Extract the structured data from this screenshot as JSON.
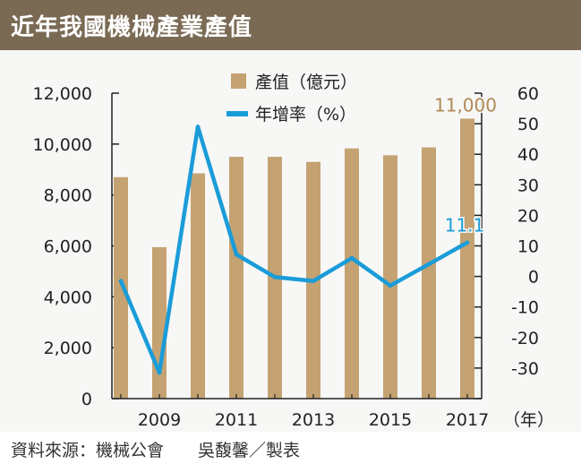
{
  "header": {
    "title": "近年我國機械產業產值"
  },
  "footer": {
    "source": "資料來源：機械公會　　吳馥馨／製表"
  },
  "colors": {
    "bar": "#c4a272",
    "line": "#1a9cd8",
    "header_bg": "#7a6a54",
    "label_bar": "#b08a55"
  },
  "chart_data": {
    "type": "bar",
    "x": [
      2008,
      2009,
      2010,
      2011,
      2012,
      2013,
      2014,
      2015,
      2016,
      2017
    ],
    "x_tick_labels": [
      "2009",
      "2011",
      "2013",
      "2015",
      "2017"
    ],
    "x_unit": "（年）",
    "series": [
      {
        "name": "產值（億元）",
        "type": "bar",
        "axis": "left",
        "values": [
          8700,
          5950,
          8850,
          9500,
          9500,
          9300,
          9830,
          9560,
          9870,
          11000
        ]
      },
      {
        "name": "年增率（%）",
        "type": "line",
        "axis": "right",
        "values": [
          -1.5,
          -31.5,
          49.0,
          7.2,
          -0.2,
          -1.5,
          6.0,
          -3.0,
          4.0,
          11.1
        ]
      }
    ],
    "annotations": [
      {
        "series": "產值（億元）",
        "x": 2017,
        "text": "11,000"
      },
      {
        "series": "年增率（%）",
        "x": 2017,
        "text": "11.1"
      }
    ],
    "y_left": {
      "ylim": [
        0,
        12000
      ],
      "ticks": [
        "0",
        "2,000",
        "4,000",
        "6,000",
        "8,000",
        "10,000",
        "12,000"
      ]
    },
    "y_right": {
      "ylim": [
        -40,
        60
      ],
      "ticks": [
        "-30",
        "-20",
        "-10",
        "0",
        "10",
        "20",
        "30",
        "40",
        "50",
        "60"
      ]
    },
    "legend": {
      "placement": "top-center"
    },
    "grid": false
  }
}
